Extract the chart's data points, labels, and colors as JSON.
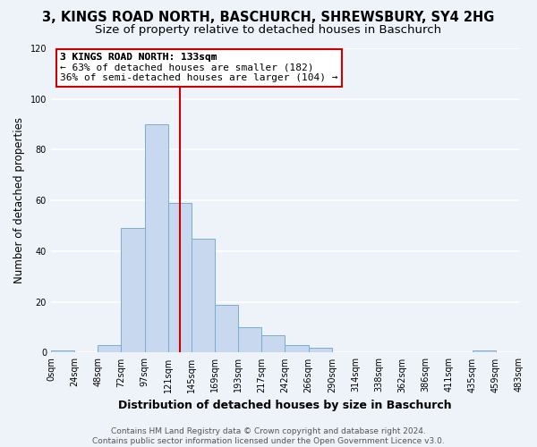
{
  "title": "3, KINGS ROAD NORTH, BASCHURCH, SHREWSBURY, SY4 2HG",
  "subtitle": "Size of property relative to detached houses in Baschurch",
  "xlabel": "Distribution of detached houses by size in Baschurch",
  "ylabel": "Number of detached properties",
  "tick_labels": [
    "0sqm",
    "24sqm",
    "48sqm",
    "72sqm",
    "97sqm",
    "121sqm",
    "145sqm",
    "169sqm",
    "193sqm",
    "217sqm",
    "242sqm",
    "266sqm",
    "290sqm",
    "314sqm",
    "338sqm",
    "362sqm",
    "386sqm",
    "411sqm",
    "435sqm",
    "459sqm",
    "483sqm"
  ],
  "counts": [
    1,
    0,
    3,
    49,
    90,
    59,
    45,
    19,
    10,
    7,
    3,
    2,
    0,
    0,
    0,
    0,
    0,
    0,
    1,
    0
  ],
  "bar_color": "#c8d9ef",
  "bar_edge_color": "#7aadd4",
  "vline_bin": 5.37,
  "vline_color": "#cc0000",
  "annotation_title": "3 KINGS ROAD NORTH: 133sqm",
  "annotation_line1": "← 63% of detached houses are smaller (182)",
  "annotation_line2": "36% of semi-detached houses are larger (104) →",
  "annotation_box_color": "#ffffff",
  "annotation_box_edge_color": "#cc0000",
  "ylim": [
    0,
    120
  ],
  "yticks": [
    0,
    20,
    40,
    60,
    80,
    100,
    120
  ],
  "footer_line1": "Contains HM Land Registry data © Crown copyright and database right 2024.",
  "footer_line2": "Contains public sector information licensed under the Open Government Licence v3.0.",
  "bg_color": "#eef2f9",
  "grid_color": "#ffffff",
  "title_fontsize": 10.5,
  "subtitle_fontsize": 9.5,
  "xlabel_fontsize": 9,
  "ylabel_fontsize": 8.5,
  "tick_fontsize": 7,
  "footer_fontsize": 6.5,
  "annotation_fontsize": 8
}
